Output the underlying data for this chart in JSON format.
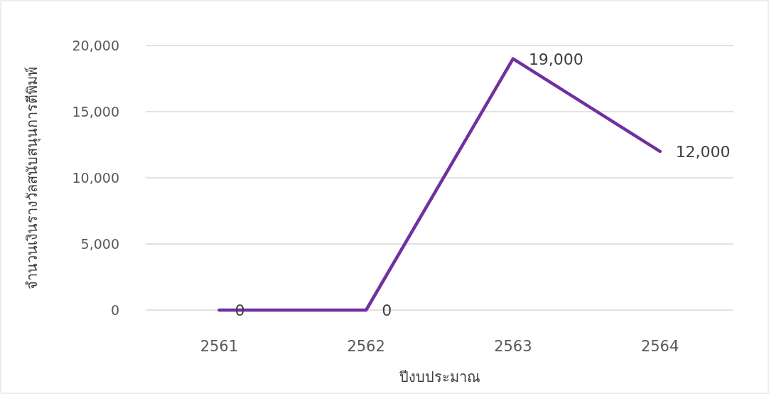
{
  "chart_data": {
    "type": "line",
    "xlabel": "ปีงบประมาณ",
    "ylabel": "จำนวนเงินรางวัลสนับสนุนการตีพิมพ์",
    "categories": [
      "2561",
      "2562",
      "2563",
      "2564"
    ],
    "series": [
      {
        "color": "#7030a0",
        "values": [
          0,
          0,
          19000,
          12000
        ],
        "value_labels": [
          "0",
          "0",
          "19,000",
          "12,000"
        ]
      }
    ],
    "ylim": [
      0,
      20000
    ],
    "yticks": [
      0,
      {
        "value": 5000,
        "label": "5,000"
      },
      {
        "value": 10000,
        "label": "10,000"
      },
      {
        "value": 15000,
        "label": "15,000"
      },
      {
        "value": 20000,
        "label": "20,000"
      }
    ],
    "grid": "y",
    "marker": "none",
    "line_style": "solid"
  }
}
